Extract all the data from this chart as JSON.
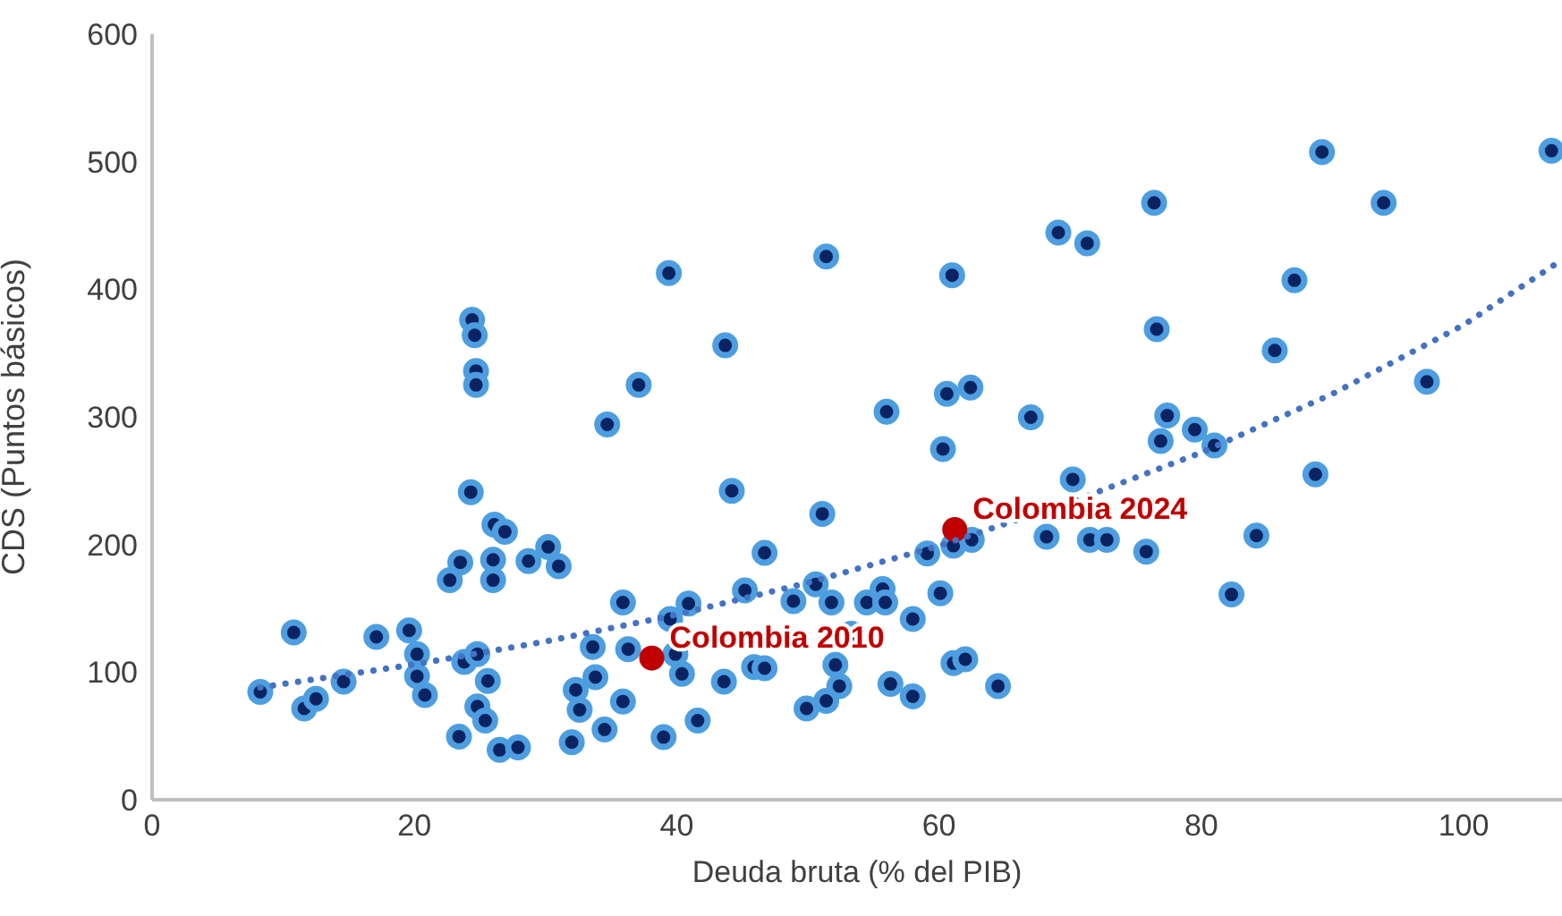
{
  "chart_data": {
    "type": "scatter",
    "xlabel": "Deuda bruta (% del PIB)",
    "ylabel": "CDS (Puntos básicos)",
    "xlim": [
      0,
      107.5
    ],
    "xticks": [
      0,
      20,
      40,
      60,
      80,
      100
    ],
    "ylim": [
      0,
      600
    ],
    "yticks": [
      0,
      100,
      200,
      300,
      400,
      500,
      600
    ],
    "grid": false,
    "marker": "circle",
    "series": [
      {
        "type": "scatter",
        "color": "#0b2461",
        "x": [
          8.25,
          10.8,
          11.6,
          12.5,
          14.6,
          17.1,
          19.6,
          20.2,
          20.2,
          20.8,
          22.7,
          23.5,
          23.4,
          24.3,
          24.4,
          24.6,
          24.7,
          24.7,
          23.8,
          24.8,
          25.6,
          24.8,
          25.4,
          26.1,
          26.9,
          26.0,
          26.0,
          26.5,
          27.9,
          28.7,
          30.2,
          31.0,
          32.0,
          32.3,
          32.6,
          33.6,
          33.8,
          34.5,
          35.9,
          34.7,
          35.9,
          36.3,
          39.0,
          39.5,
          39.9,
          40.4,
          40.9,
          41.6,
          44.2,
          43.6,
          45.2,
          45.9,
          46.7,
          46.7,
          48.9,
          49.9,
          50.6,
          51.1,
          51.4,
          51.8,
          52.1,
          52.4,
          53.3,
          54.5,
          55.7,
          55.9,
          56.0,
          56.3,
          58.0,
          58.0,
          59.1,
          60.1,
          60.3,
          61.1,
          62.0,
          61.1,
          62.5,
          64.5,
          67.0,
          39.4,
          43.7,
          37.1,
          51.4,
          61.0,
          60.6,
          62.4,
          89.2,
          106.7,
          76.4,
          93.9,
          69.1,
          71.3,
          87.1,
          85.6,
          76.6,
          97.2,
          77.4,
          76.9,
          79.5,
          81.0,
          70.2,
          68.2,
          71.5,
          72.8,
          75.8,
          84.2,
          88.7,
          82.3
        ],
        "values": [
          84.5,
          131,
          71.5,
          79,
          92.5,
          127.6,
          132.7,
          114,
          96.7,
          82,
          172,
          186,
          49.5,
          241,
          376,
          364,
          336,
          325,
          108,
          114,
          93,
          73,
          62,
          215.5,
          210,
          188,
          172,
          39,
          41,
          187,
          198,
          183,
          45,
          86,
          70.5,
          119.6,
          96,
          55,
          77,
          294,
          154.6,
          118,
          49,
          141.6,
          114,
          98.6,
          153.7,
          62,
          242,
          92.5,
          164,
          104,
          103,
          193.5,
          155.6,
          71.5,
          168.7,
          224,
          77.5,
          154.6,
          105.6,
          89,
          130,
          154.6,
          165,
          154.6,
          304,
          90.7,
          141.6,
          81,
          193,
          161.7,
          274.8,
          107,
          110,
          199,
          203.7,
          89,
          299.6,
          412.6,
          356,
          325,
          425.6,
          411,
          318,
          323,
          507.5,
          508.5,
          467.7,
          467.7,
          444.4,
          436,
          407,
          352,
          368.7,
          327.5,
          301,
          281,
          290,
          277.6,
          251,
          206,
          203.7,
          203.7,
          194.4,
          207,
          255,
          160.8
        ]
      },
      {
        "type": "scatter",
        "color": "#c00000",
        "x": [
          38.1,
          61.2
        ],
        "values": [
          111,
          211.7
        ]
      },
      {
        "type": "line",
        "color": "#4472c4",
        "line_style": "dotted",
        "marker": "none",
        "x": [
          8.25,
          20,
          30,
          40,
          50,
          60,
          70,
          80,
          90,
          100,
          107.5
        ],
        "values": [
          88,
          106,
          124,
          145,
          170,
          199,
          233,
          272,
          318,
          372,
          423
        ]
      }
    ],
    "annotations": [
      {
        "text": "Colombia 2010",
        "x": 38.1,
        "y": 111
      },
      {
        "text": "Colombia 2024",
        "x": 61.2,
        "y": 211.7
      }
    ]
  }
}
